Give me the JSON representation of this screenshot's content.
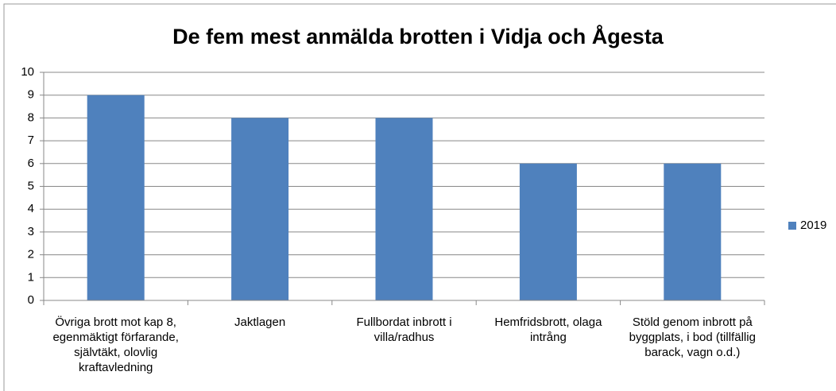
{
  "chart_data": {
    "type": "bar",
    "title": "De fem mest anmälda brotten i Vidja och Ågesta",
    "categories": [
      "Övriga brott mot kap 8, egenmäktigt förfarande, självtäkt, olovlig kraftavledning",
      "Jaktlagen",
      "Fullbordat inbrott i villa/radhus",
      "Hemfridsbrott, olaga intrång",
      "Stöld genom inbrott på byggplats, i bod (tillfällig barack, vagn o.d.)"
    ],
    "series": [
      {
        "name": "2019",
        "color": "#4f81bd",
        "values": [
          9,
          8,
          8,
          6,
          6
        ]
      }
    ],
    "ylim": [
      0,
      10
    ],
    "yticks": [
      0,
      1,
      2,
      3,
      4,
      5,
      6,
      7,
      8,
      9,
      10
    ],
    "grid": true,
    "legend": "right"
  }
}
